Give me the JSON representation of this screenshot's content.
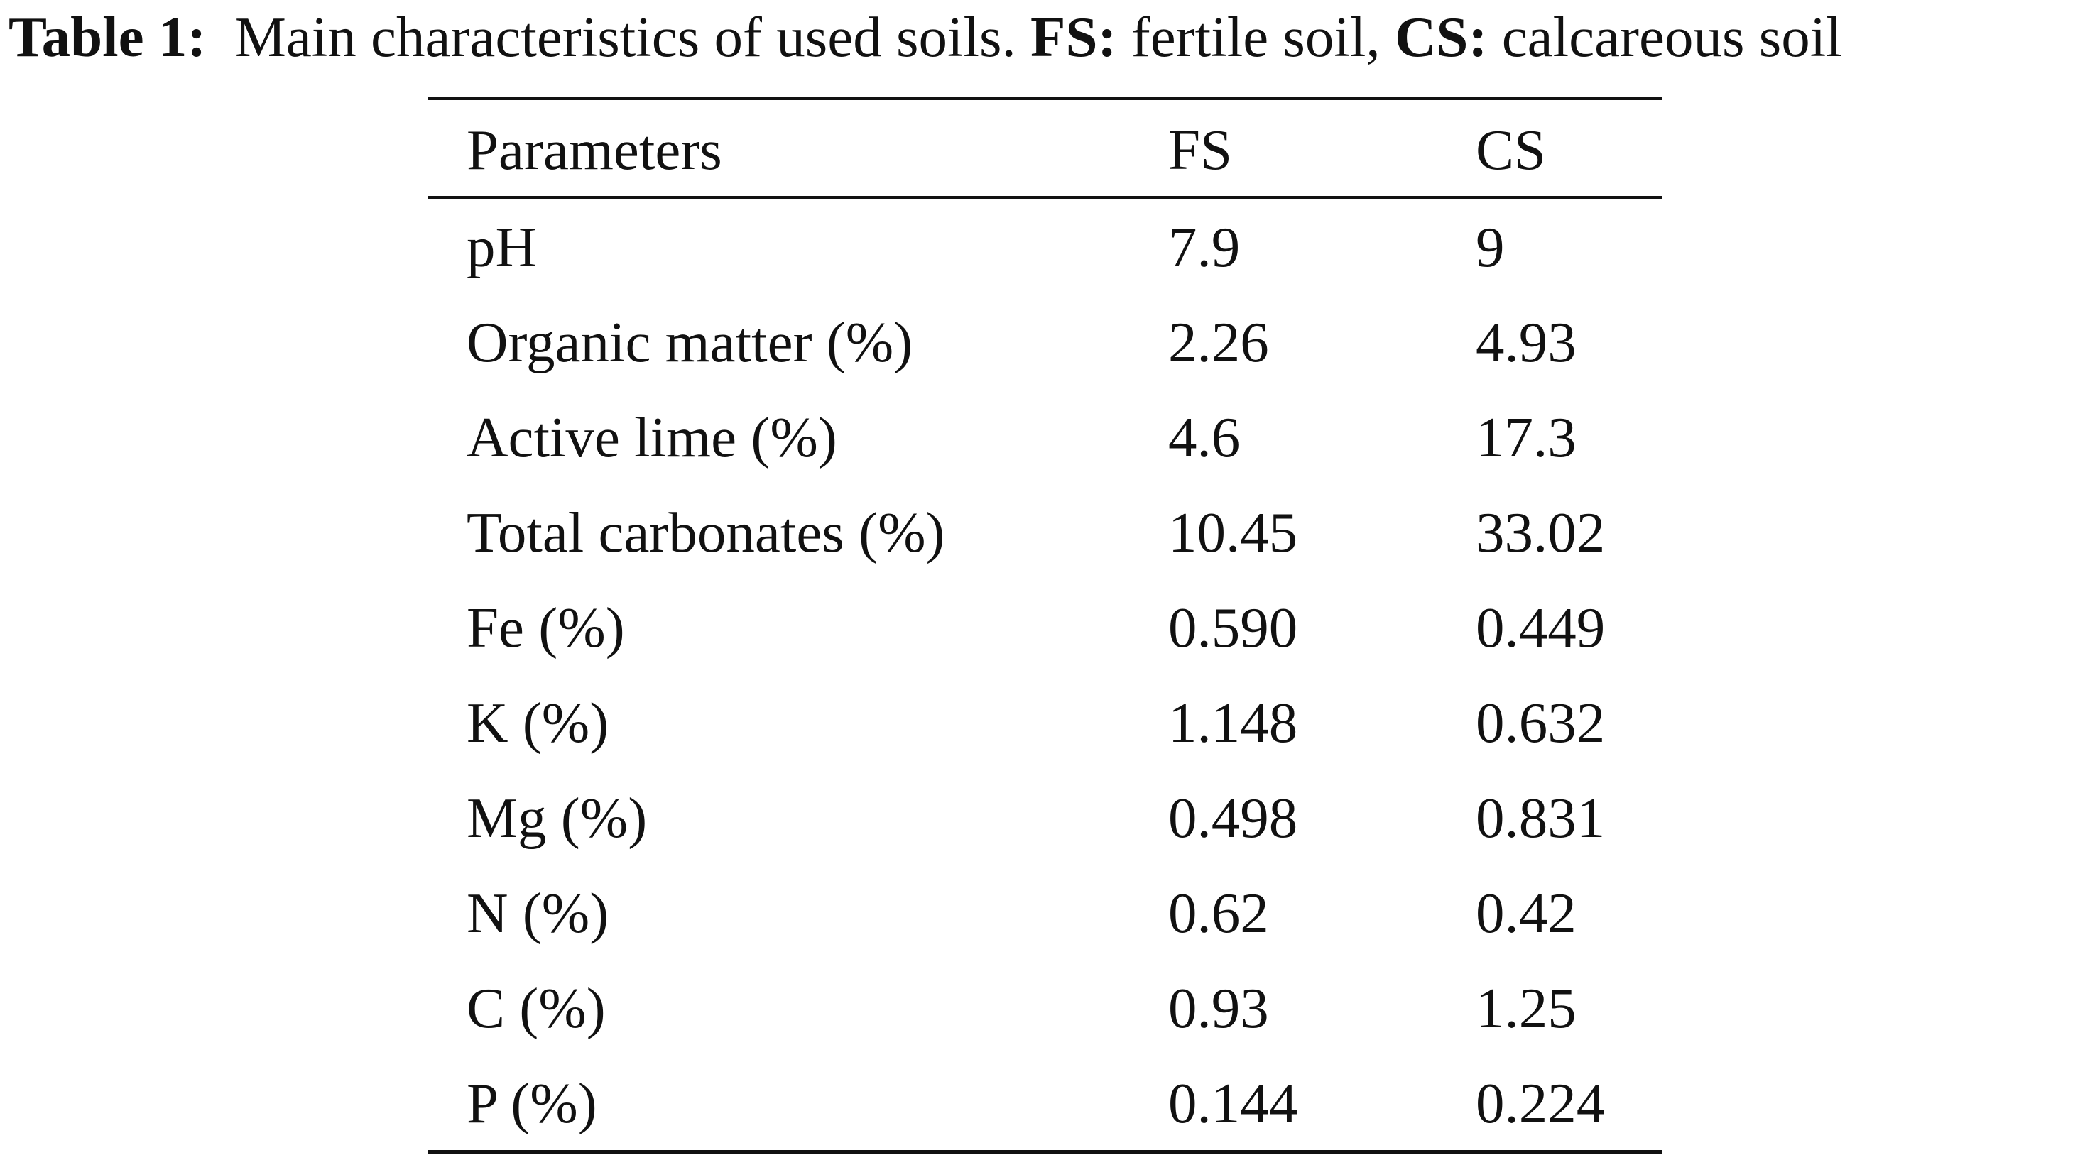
{
  "caption": {
    "label": "Table 1:",
    "text1": "Main characteristics of used soils.",
    "fs_abbr": "FS:",
    "fs_text": "fertile soil,",
    "cs_abbr": "CS:",
    "cs_text": "calcareous soil"
  },
  "table": {
    "headers": [
      "Parameters",
      "FS",
      "CS"
    ],
    "rows": [
      [
        "pH",
        "7.9",
        "9"
      ],
      [
        "Organic matter (%)",
        "2.26",
        "4.93"
      ],
      [
        "Active lime (%)",
        "4.6",
        "17.3"
      ],
      [
        "Total carbonates (%)",
        "10.45",
        "33.02"
      ],
      [
        "Fe (%)",
        "0.590",
        "0.449"
      ],
      [
        "K (%)",
        "1.148",
        "0.632"
      ],
      [
        "Mg (%)",
        "0.498",
        "0.831"
      ],
      [
        "N (%)",
        "0.62",
        "0.42"
      ],
      [
        "C (%)",
        "0.93",
        "1.25"
      ],
      [
        "P (%)",
        "0.144",
        "0.224"
      ]
    ]
  }
}
